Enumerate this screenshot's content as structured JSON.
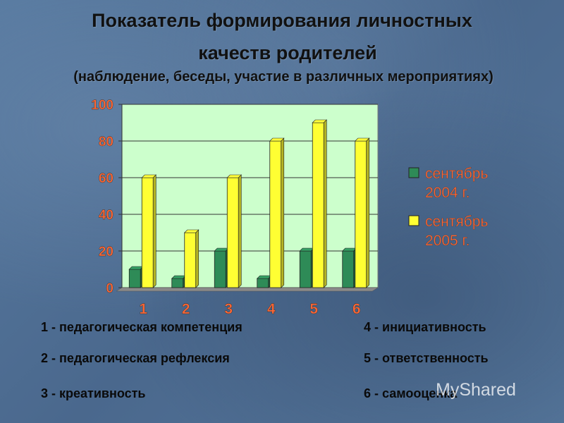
{
  "title_line1": "Показатель формирования личностных",
  "title_line2": "качеств родителей",
  "title_line3": "(наблюдение, беседы, участие в различных мероприятиях)",
  "chart_data": {
    "type": "bar",
    "categories": [
      "1",
      "2",
      "3",
      "4",
      "5",
      "6"
    ],
    "series": [
      {
        "name": "сентябрь 2004 г.",
        "name_lines": [
          "сентябрь",
          "2004 г."
        ],
        "color": "#2e8b57",
        "values": [
          10,
          5,
          20,
          5,
          20,
          20
        ]
      },
      {
        "name": "сентябрь 2005 г.",
        "name_lines": [
          "сентябрь",
          "2005 г."
        ],
        "color": "#ffff33",
        "values": [
          60,
          30,
          60,
          80,
          90,
          80
        ]
      }
    ],
    "ylim": [
      0,
      100
    ],
    "yticks": [
      "0",
      "20",
      "40",
      "60",
      "80",
      "100"
    ],
    "grid": true,
    "legend": "right",
    "plot_background": "#ccffcc",
    "tick_label_color": "#ff6633"
  },
  "notes": [
    "1 - педагогическая компетенция",
    "4 - инициативность",
    "2 - педагогическая рефлексия",
    "5 - ответственность",
    "3 - креативность",
    "6 - самооценка"
  ],
  "watermark": "MyShared"
}
